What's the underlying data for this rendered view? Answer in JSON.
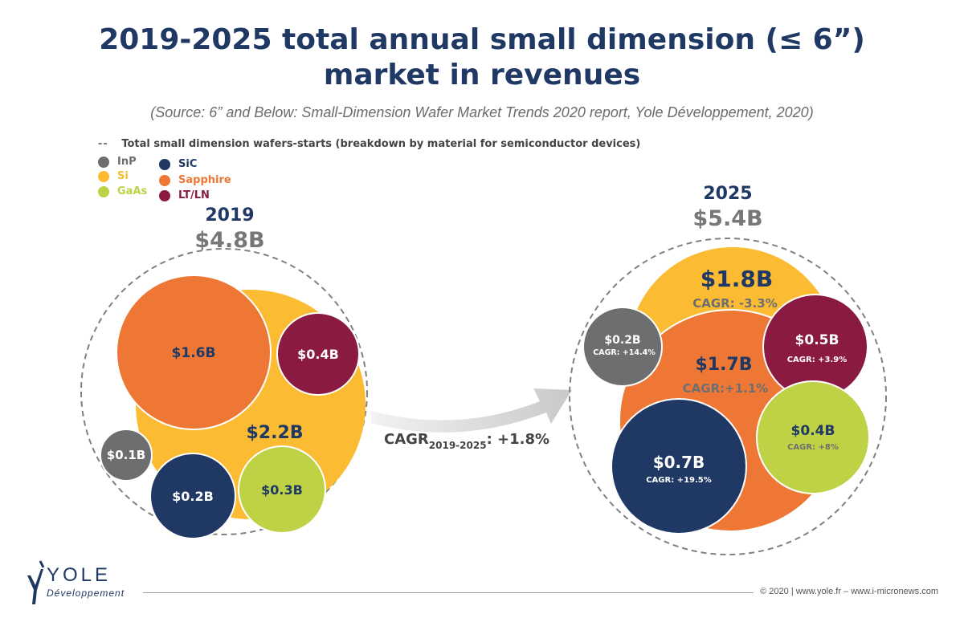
{
  "header": {
    "title_line1": "2019-2025 total annual small dimension (≤ 6”)",
    "title_line2": "market in revenues",
    "source": "(Source: 6” and Below: Small-Dimension Wafer Market Trends 2020 report, Yole Développement, 2020)"
  },
  "legend": {
    "dashed_label": "Total small dimension wafers-starts (breakdown by material for semiconductor devices)",
    "dashes": "--",
    "items": [
      {
        "name": "InP",
        "color": "#6d6e70"
      },
      {
        "name": "Si",
        "color": "#fbbc34"
      },
      {
        "name": "GaAs",
        "color": "#bfd145"
      },
      {
        "name": "SiC",
        "color": "#1f3864"
      },
      {
        "name": "Sapphire",
        "color": "#ee7735"
      },
      {
        "name": "LT/LN",
        "color": "#8a1a42"
      }
    ]
  },
  "chart_data": {
    "type": "bubble",
    "unit": "$B",
    "groups": [
      {
        "year": "2019",
        "total_label": "$4.8B",
        "bubbles": [
          {
            "material": "Si",
            "value_label": "$2.2B",
            "value": 2.2
          },
          {
            "material": "Sapphire",
            "value_label": "$1.6B",
            "value": 1.6
          },
          {
            "material": "LT/LN",
            "value_label": "$0.4B",
            "value": 0.4
          },
          {
            "material": "GaAs",
            "value_label": "$0.3B",
            "value": 0.3
          },
          {
            "material": "SiC",
            "value_label": "$0.2B",
            "value": 0.2
          },
          {
            "material": "InP",
            "value_label": "$0.1B",
            "value": 0.1
          }
        ]
      },
      {
        "year": "2025",
        "total_label": "$5.4B",
        "bubbles": [
          {
            "material": "Si",
            "value_label": "$1.8B",
            "value": 1.8,
            "cagr": "CAGR: -3.3%"
          },
          {
            "material": "Sapphire",
            "value_label": "$1.7B",
            "value": 1.7,
            "cagr": "CAGR:+1.1%"
          },
          {
            "material": "SiC",
            "value_label": "$0.7B",
            "value": 0.7,
            "cagr": "CAGR: +19.5%"
          },
          {
            "material": "LT/LN",
            "value_label": "$0.5B",
            "value": 0.5,
            "cagr": "CAGR: +3.9%"
          },
          {
            "material": "GaAs",
            "value_label": "$0.4B",
            "value": 0.4,
            "cagr": "CAGR: +8%"
          },
          {
            "material": "InP",
            "value_label": "$0.2B",
            "value": 0.2,
            "cagr": "CAGR: +14.4%"
          }
        ]
      }
    ],
    "overall_cagr": {
      "prefix": "CAGR",
      "subscript": "2019-2025",
      "value": ": +1.8%"
    }
  },
  "footer": {
    "copyright": "© 2020 | www.yole.fr – www.i-micronews.com",
    "logo_text": "YOLE",
    "logo_subtext": "Développement"
  }
}
